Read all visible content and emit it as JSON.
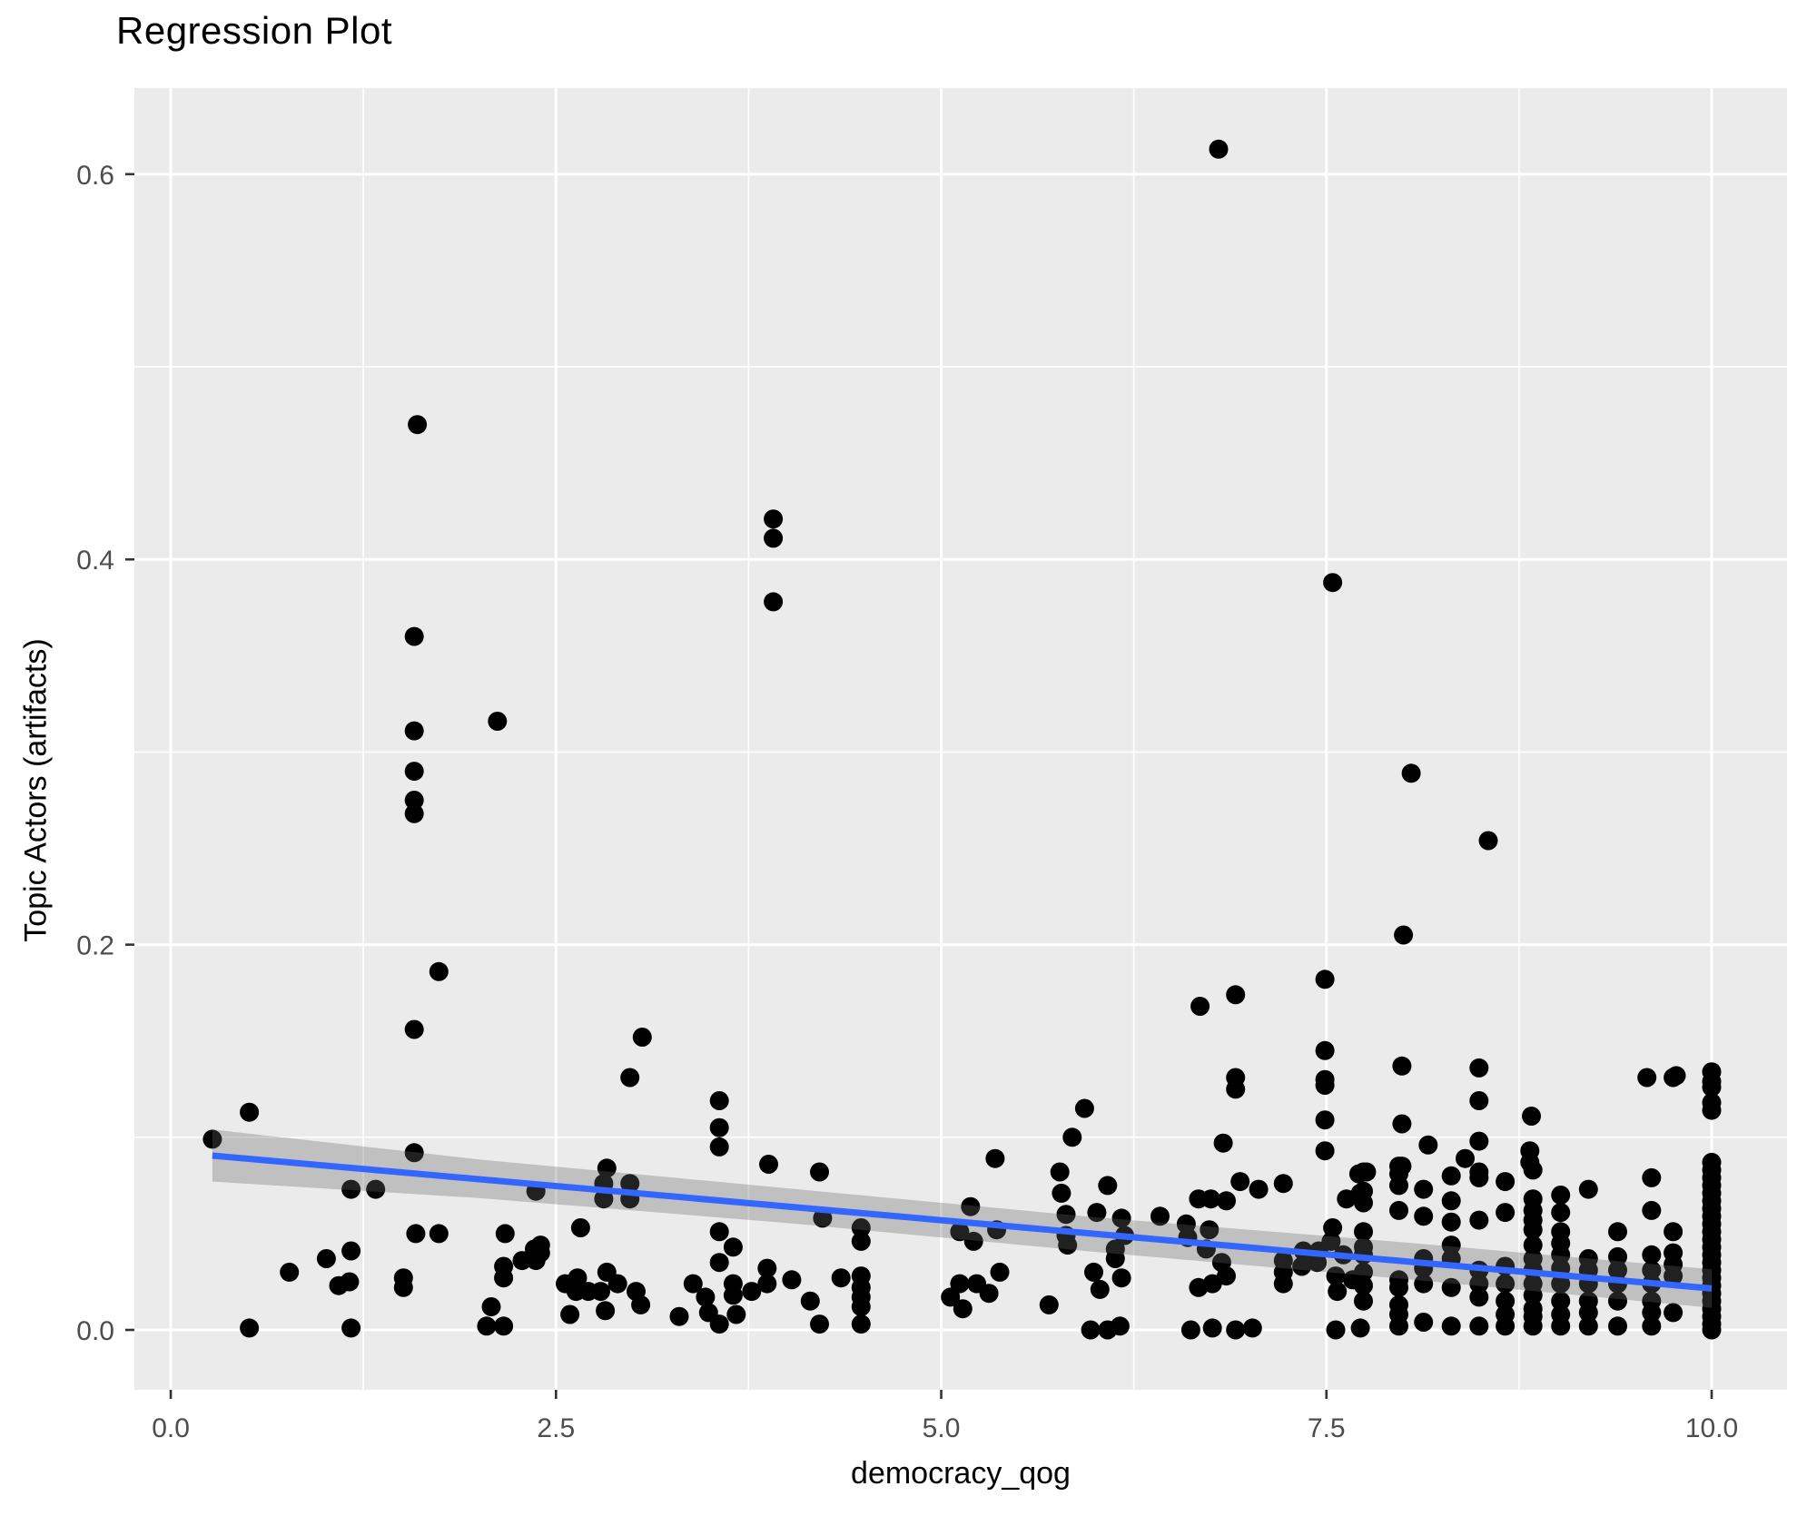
{
  "chart_data": {
    "type": "scatter",
    "title": "Regression Plot",
    "xlabel": "democracy_qog",
    "ylabel": "Topic Actors (artifacts)",
    "legend": "none",
    "grid": "white major+minor gridlines on gray panel",
    "xlim": [
      -0.236,
      10.489
    ],
    "ylim": [
      -0.0311,
      0.6447
    ],
    "x_ticks": {
      "values": [
        0,
        2.5,
        5,
        7.5,
        10
      ],
      "labels": [
        "0.0",
        "2.5",
        "5.0",
        "7.5",
        "10.0"
      ]
    },
    "y_ticks": {
      "values": [
        0,
        0.2,
        0.4,
        0.6
      ],
      "labels": [
        "0.0",
        "0.2",
        "0.4",
        "0.6"
      ]
    },
    "x_minor": [
      1.25,
      3.75,
      6.25,
      8.75
    ],
    "y_minor": [
      0.1,
      0.3,
      0.5
    ],
    "colors": {
      "page_bg": "#FFFFFF",
      "panel_bg": "#EBEBEB",
      "grid": "#FFFFFF",
      "point": "#000000",
      "line": "#3366FF",
      "band": "rgba(103,103,103,0.32)",
      "tick_text": "#4D4D4D",
      "tick_mark": "#333333",
      "text": "#000000"
    },
    "regression": {
      "line": [
        [
          0.27,
          0.0905
        ],
        [
          10,
          0.0215
        ]
      ],
      "band_upper": [
        [
          0.27,
          0.104
        ],
        [
          2,
          0.0885
        ],
        [
          4,
          0.0735
        ],
        [
          6,
          0.0585
        ],
        [
          8,
          0.0455
        ],
        [
          10,
          0.0315
        ]
      ],
      "band_lower": [
        [
          0.27,
          0.077
        ],
        [
          2,
          0.0685
        ],
        [
          4,
          0.0555
        ],
        [
          6,
          0.0405
        ],
        [
          8,
          0.0265
        ],
        [
          10,
          0.0115
        ]
      ]
    },
    "points": [
      [
        6.8,
        0.613
      ],
      [
        1.6,
        0.47
      ],
      [
        3.91,
        0.421
      ],
      [
        3.91,
        0.411
      ],
      [
        3.91,
        0.378
      ],
      [
        7.54,
        0.388
      ],
      [
        1.58,
        0.36
      ],
      [
        2.12,
        0.316
      ],
      [
        1.58,
        0.311
      ],
      [
        1.58,
        0.29
      ],
      [
        8.05,
        0.289
      ],
      [
        1.58,
        0.275
      ],
      [
        1.58,
        0.268
      ],
      [
        8.55,
        0.254
      ],
      [
        8.0,
        0.205
      ],
      [
        1.74,
        0.186
      ],
      [
        1.58,
        0.156
      ],
      [
        3.06,
        0.152
      ],
      [
        2.98,
        0.131
      ],
      [
        0.51,
        0.113
      ],
      [
        0.27,
        0.099
      ],
      [
        1.58,
        0.092
      ],
      [
        3.56,
        0.119
      ],
      [
        3.56,
        0.105
      ],
      [
        3.56,
        0.095
      ],
      [
        2.83,
        0.084
      ],
      [
        3.88,
        0.086
      ],
      [
        4.21,
        0.082
      ],
      [
        6.68,
        0.168
      ],
      [
        6.91,
        0.174
      ],
      [
        7.49,
        0.182
      ],
      [
        7.49,
        0.145
      ],
      [
        6.91,
        0.131
      ],
      [
        6.91,
        0.125
      ],
      [
        7.49,
        0.13
      ],
      [
        7.49,
        0.127
      ],
      [
        7.49,
        0.109
      ],
      [
        5.93,
        0.115
      ],
      [
        5.85,
        0.1
      ],
      [
        5.35,
        0.089
      ],
      [
        5.77,
        0.082
      ],
      [
        6.83,
        0.097
      ],
      [
        7.49,
        0.093
      ],
      [
        7.99,
        0.137
      ],
      [
        8.49,
        0.136
      ],
      [
        8.49,
        0.119
      ],
      [
        7.99,
        0.107
      ],
      [
        8.16,
        0.096
      ],
      [
        8.49,
        0.098
      ],
      [
        8.4,
        0.089
      ],
      [
        8.49,
        0.082
      ],
      [
        7.76,
        0.082
      ],
      [
        7.99,
        0.085
      ],
      [
        9.58,
        0.131
      ],
      [
        9.75,
        0.131
      ],
      [
        9.77,
        0.132
      ],
      [
        10,
        0.134
      ],
      [
        10,
        0.129
      ],
      [
        10,
        0.126
      ],
      [
        10,
        0.118
      ],
      [
        10,
        0.114
      ],
      [
        8.83,
        0.111
      ],
      [
        8.82,
        0.093
      ],
      [
        8.82,
        0.087
      ],
      [
        1.17,
        0.073
      ],
      [
        1.33,
        0.073
      ],
      [
        2.37,
        0.072
      ],
      [
        1.59,
        0.05
      ],
      [
        1.74,
        0.05
      ],
      [
        1.01,
        0.037
      ],
      [
        1.17,
        0.041
      ],
      [
        0.77,
        0.03
      ],
      [
        1.09,
        0.023
      ],
      [
        1.16,
        0.025
      ],
      [
        1.51,
        0.027
      ],
      [
        1.51,
        0.022
      ],
      [
        2.08,
        0.012
      ],
      [
        2.05,
        0.002
      ],
      [
        2.16,
        0.002
      ],
      [
        0.51,
        0.001
      ],
      [
        1.17,
        0.001
      ],
      [
        2.17,
        0.05
      ],
      [
        2.36,
        0.042
      ],
      [
        2.37,
        0.036
      ],
      [
        2.16,
        0.033
      ],
      [
        2.16,
        0.027
      ],
      [
        2.28,
        0.036
      ],
      [
        2.81,
        0.076
      ],
      [
        2.98,
        0.076
      ],
      [
        2.81,
        0.068
      ],
      [
        2.98,
        0.068
      ],
      [
        4.23,
        0.058
      ],
      [
        2.66,
        0.053
      ],
      [
        2.4,
        0.044
      ],
      [
        2.4,
        0.04
      ],
      [
        3.56,
        0.051
      ],
      [
        3.65,
        0.043
      ],
      [
        3.56,
        0.035
      ],
      [
        3.65,
        0.024
      ],
      [
        3.39,
        0.024
      ],
      [
        3.47,
        0.017
      ],
      [
        3.49,
        0.009
      ],
      [
        3.56,
        0.003
      ],
      [
        3.67,
        0.008
      ],
      [
        3.65,
        0.018
      ],
      [
        3.77,
        0.02
      ],
      [
        3.87,
        0.024
      ],
      [
        3.87,
        0.032
      ],
      [
        3.3,
        0.007
      ],
      [
        4.03,
        0.026
      ],
      [
        4.15,
        0.015
      ],
      [
        4.35,
        0.027
      ],
      [
        2.56,
        0.024
      ],
      [
        2.63,
        0.02
      ],
      [
        2.71,
        0.02
      ],
      [
        2.64,
        0.027
      ],
      [
        2.79,
        0.02
      ],
      [
        2.9,
        0.024
      ],
      [
        2.83,
        0.03
      ],
      [
        3.02,
        0.02
      ],
      [
        2.82,
        0.01
      ],
      [
        2.59,
        0.008
      ],
      [
        3.05,
        0.013
      ],
      [
        4.21,
        0.003
      ],
      [
        4.48,
        0.053
      ],
      [
        4.48,
        0.046
      ],
      [
        4.48,
        0.028
      ],
      [
        4.48,
        0.022
      ],
      [
        4.48,
        0.017
      ],
      [
        4.48,
        0.012
      ],
      [
        4.48,
        0.003
      ],
      [
        6.08,
        0.075
      ],
      [
        7.22,
        0.076
      ],
      [
        7.71,
        0.081
      ],
      [
        5.19,
        0.064
      ],
      [
        5.36,
        0.052
      ],
      [
        5.12,
        0.051
      ],
      [
        5.21,
        0.046
      ],
      [
        5.78,
        0.071
      ],
      [
        5.81,
        0.06
      ],
      [
        5.81,
        0.049
      ],
      [
        5.82,
        0.044
      ],
      [
        6.01,
        0.061
      ],
      [
        6.17,
        0.058
      ],
      [
        6.19,
        0.049
      ],
      [
        6.13,
        0.042
      ],
      [
        6.13,
        0.037
      ],
      [
        6.42,
        0.059
      ],
      [
        6.59,
        0.055
      ],
      [
        6.6,
        0.048
      ],
      [
        6.67,
        0.068
      ],
      [
        6.75,
        0.068
      ],
      [
        6.85,
        0.067
      ],
      [
        6.94,
        0.077
      ],
      [
        7.06,
        0.073
      ],
      [
        6.72,
        0.042
      ],
      [
        6.82,
        0.035
      ],
      [
        6.85,
        0.028
      ],
      [
        6.76,
        0.024
      ],
      [
        6.67,
        0.022
      ],
      [
        6.17,
        0.027
      ],
      [
        5.99,
        0.03
      ],
      [
        6.03,
        0.021
      ],
      [
        5.38,
        0.03
      ],
      [
        5.23,
        0.024
      ],
      [
        5.31,
        0.019
      ],
      [
        5.12,
        0.024
      ],
      [
        5.06,
        0.017
      ],
      [
        5.14,
        0.011
      ],
      [
        5.7,
        0.013
      ],
      [
        5.97,
        0
      ],
      [
        6.08,
        0
      ],
      [
        6.16,
        0.002
      ],
      [
        6.62,
        0
      ],
      [
        6.76,
        0.001
      ],
      [
        6.91,
        0
      ],
      [
        7.02,
        0.001
      ],
      [
        7.56,
        0
      ],
      [
        7.72,
        0.001
      ],
      [
        7.22,
        0.036
      ],
      [
        7.22,
        0.03
      ],
      [
        7.22,
        0.024
      ],
      [
        7.34,
        0.033
      ],
      [
        7.35,
        0.041
      ],
      [
        7.45,
        0.041
      ],
      [
        7.44,
        0.035
      ],
      [
        7.53,
        0.046
      ],
      [
        7.54,
        0.053
      ],
      [
        7.61,
        0.039
      ],
      [
        7.56,
        0.028
      ],
      [
        7.57,
        0.02
      ],
      [
        7.67,
        0.026
      ],
      [
        7.72,
        0.071
      ],
      [
        7.63,
        0.068
      ],
      [
        6.74,
        0.052
      ],
      [
        7.74,
        0.082
      ],
      [
        7.74,
        0.072
      ],
      [
        7.74,
        0.066
      ],
      [
        7.74,
        0.051
      ],
      [
        7.74,
        0.043
      ],
      [
        7.74,
        0.039
      ],
      [
        7.74,
        0.03
      ],
      [
        7.74,
        0.023
      ],
      [
        7.74,
        0.015
      ],
      [
        7.97,
        0.085
      ],
      [
        7.97,
        0.081
      ],
      [
        7.97,
        0.075
      ],
      [
        7.97,
        0.062
      ],
      [
        7.97,
        0.026
      ],
      [
        7.97,
        0.022
      ],
      [
        7.97,
        0.013
      ],
      [
        7.97,
        0.008
      ],
      [
        7.97,
        0.002
      ],
      [
        8.13,
        0.073
      ],
      [
        8.13,
        0.059
      ],
      [
        8.13,
        0.037
      ],
      [
        8.13,
        0.032
      ],
      [
        8.13,
        0.024
      ],
      [
        8.13,
        0.004
      ],
      [
        8.31,
        0.08
      ],
      [
        8.31,
        0.067
      ],
      [
        8.31,
        0.056
      ],
      [
        8.31,
        0.044
      ],
      [
        8.31,
        0.037
      ],
      [
        8.31,
        0.022
      ],
      [
        8.31,
        0.002
      ],
      [
        8.49,
        0.079
      ],
      [
        8.49,
        0.057
      ],
      [
        8.49,
        0.031
      ],
      [
        8.49,
        0.024
      ],
      [
        8.49,
        0.017
      ],
      [
        8.49,
        0.002
      ],
      [
        8.66,
        0.077
      ],
      [
        8.66,
        0.061
      ],
      [
        8.66,
        0.033
      ],
      [
        8.66,
        0.024
      ],
      [
        8.66,
        0.015
      ],
      [
        8.66,
        0.008
      ],
      [
        8.66,
        0.002
      ],
      [
        8.84,
        0.083
      ],
      [
        8.84,
        0.068
      ],
      [
        8.84,
        0.062
      ],
      [
        8.84,
        0.057
      ],
      [
        8.84,
        0.052
      ],
      [
        8.84,
        0.044
      ],
      [
        8.84,
        0.037
      ],
      [
        8.84,
        0.031
      ],
      [
        8.84,
        0.024
      ],
      [
        8.84,
        0.018
      ],
      [
        8.84,
        0.011
      ],
      [
        8.84,
        0.007
      ],
      [
        8.84,
        0.002
      ],
      [
        9.02,
        0.07
      ],
      [
        9.02,
        0.061
      ],
      [
        9.02,
        0.051
      ],
      [
        9.02,
        0.045
      ],
      [
        9.02,
        0.039
      ],
      [
        9.02,
        0.032
      ],
      [
        9.02,
        0.024
      ],
      [
        9.02,
        0.015
      ],
      [
        9.02,
        0.008
      ],
      [
        9.02,
        0.002
      ],
      [
        9.2,
        0.073
      ],
      [
        9.2,
        0.037
      ],
      [
        9.2,
        0.031
      ],
      [
        9.2,
        0.024
      ],
      [
        9.2,
        0.015
      ],
      [
        9.2,
        0.009
      ],
      [
        9.2,
        0.002
      ],
      [
        9.39,
        0.051
      ],
      [
        9.39,
        0.038
      ],
      [
        9.39,
        0.031
      ],
      [
        9.39,
        0.024
      ],
      [
        9.39,
        0.015
      ],
      [
        9.39,
        0.002
      ],
      [
        9.61,
        0.079
      ],
      [
        9.61,
        0.062
      ],
      [
        9.61,
        0.039
      ],
      [
        9.61,
        0.031
      ],
      [
        9.61,
        0.024
      ],
      [
        9.61,
        0.015
      ],
      [
        9.61,
        0.009
      ],
      [
        9.61,
        0.002
      ],
      [
        9.75,
        0.051
      ],
      [
        9.75,
        0.04
      ],
      [
        9.75,
        0.034
      ],
      [
        9.75,
        0.028
      ],
      [
        9.75,
        0.009
      ],
      [
        10,
        0.087
      ],
      [
        10,
        0.083
      ],
      [
        10,
        0.079
      ],
      [
        10,
        0.075
      ],
      [
        10,
        0.071
      ],
      [
        10,
        0.067
      ],
      [
        10,
        0.063
      ],
      [
        10,
        0.059
      ],
      [
        10,
        0.055
      ],
      [
        10,
        0.051
      ],
      [
        10,
        0.047
      ],
      [
        10,
        0.043
      ],
      [
        10,
        0.039
      ],
      [
        10,
        0.035
      ],
      [
        10,
        0.031
      ],
      [
        10,
        0.027
      ],
      [
        10,
        0.023
      ],
      [
        10,
        0.019
      ],
      [
        10,
        0.015
      ],
      [
        10,
        0.011
      ],
      [
        10,
        0.007
      ],
      [
        10,
        0.003
      ],
      [
        10,
        0
      ]
    ]
  }
}
